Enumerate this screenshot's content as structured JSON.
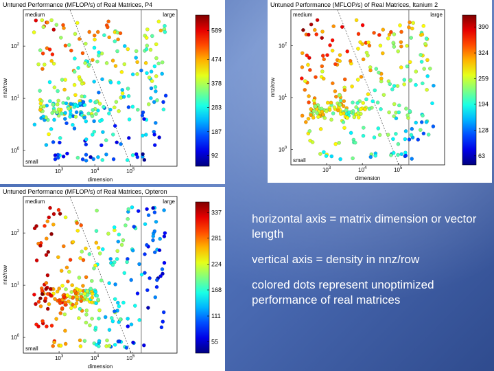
{
  "notes": [
    "horizontal axis = matrix dimension or vector length",
    "vertical axis = density in nnz/row",
    "colored dots represent unoptimized performance of real matrices"
  ],
  "chart_data": [
    {
      "type": "scatter",
      "title": "Untuned Performance (MFLOP/s) of Real Matrices, P4",
      "xlabel": "dimension",
      "ylabel": "nnz/row",
      "x_scale": "log",
      "y_scale": "log",
      "xlim": [
        100,
        2000000
      ],
      "ylim": [
        0.5,
        500
      ],
      "x_ticks": [
        "10^3",
        "10^4",
        "10^5"
      ],
      "y_ticks": [
        "10^0",
        "10^1",
        "10^2"
      ],
      "region_labels": {
        "medium": "medium",
        "large": "large",
        "small": "small"
      },
      "colorbar": {
        "ticks": [
          "589",
          "474",
          "378",
          "283",
          "187",
          "92"
        ],
        "range": [
          50,
          650
        ]
      },
      "theme": "mixed",
      "seed": 11,
      "n_points": 300
    },
    {
      "type": "scatter",
      "title": "Untuned Performance (MFLOP/s) of Real Matrices, Itanium 2",
      "xlabel": "dimension",
      "ylabel": "nnz/row",
      "x_scale": "log",
      "y_scale": "log",
      "xlim": [
        100,
        2000000
      ],
      "ylim": [
        0.5,
        500
      ],
      "x_ticks": [
        "10^3",
        "10^4",
        "10^5"
      ],
      "y_ticks": [
        "10^0",
        "10^1",
        "10^2"
      ],
      "region_labels": {
        "medium": "medium",
        "large": "large",
        "small": "small"
      },
      "colorbar": {
        "ticks": [
          "390",
          "324",
          "259",
          "194",
          "128",
          "63"
        ],
        "range": [
          40,
          420
        ]
      },
      "theme": "warm",
      "seed": 23,
      "n_points": 300
    },
    {
      "type": "scatter",
      "title": "Untuned Performance (MFLOP/s) of Real Matrices, Opteron",
      "xlabel": "dimension",
      "ylabel": "nnz/row",
      "x_scale": "log",
      "y_scale": "log",
      "xlim": [
        100,
        2000000
      ],
      "ylim": [
        0.5,
        500
      ],
      "x_ticks": [
        "10^3",
        "10^4",
        "10^5"
      ],
      "y_ticks": [
        "10^0",
        "10^1",
        "10^2"
      ],
      "region_labels": {
        "medium": "medium",
        "large": "large",
        "small": "small"
      },
      "colorbar": {
        "ticks": [
          "337",
          "281",
          "224",
          "168",
          "111",
          "55"
        ],
        "range": [
          30,
          360
        ]
      },
      "theme": "warmleft",
      "seed": 37,
      "n_points": 300
    }
  ]
}
